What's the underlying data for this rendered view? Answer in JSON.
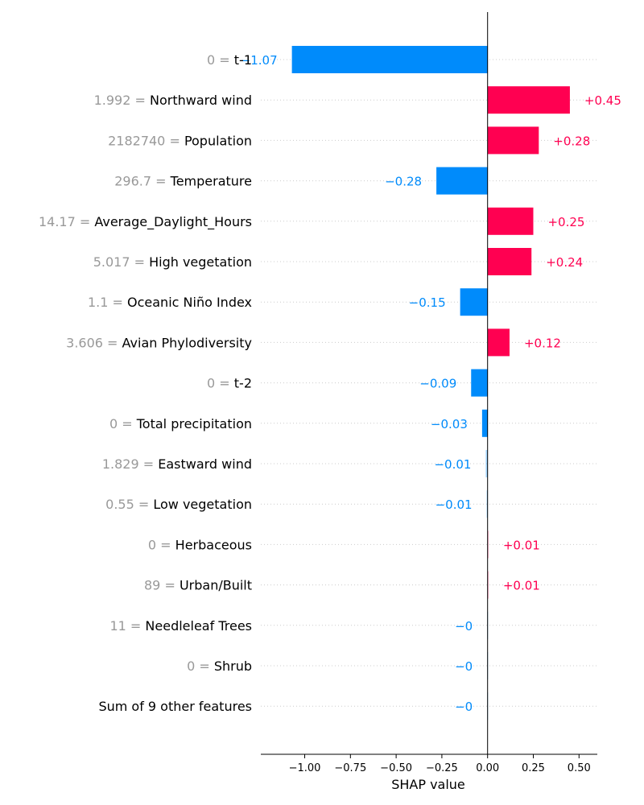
{
  "chart_data": {
    "type": "bar",
    "orientation": "horizontal",
    "xlabel": "SHAP value",
    "xlim": [
      -1.24,
      0.6
    ],
    "xticks": [
      -1.0,
      -0.75,
      -0.5,
      -0.25,
      0.0,
      0.25,
      0.5
    ],
    "xtick_labels": [
      "−1.00",
      "−0.75",
      "−0.50",
      "−0.25",
      "0.00",
      "0.25",
      "0.50"
    ],
    "grid": "dotted horizontal",
    "colors": {
      "positive": "#ff0051",
      "negative": "#008bfb"
    },
    "features": [
      {
        "value": "0",
        "name": "t-1",
        "shap": -1.07,
        "label": "−1.07"
      },
      {
        "value": "1.992",
        "name": "Northward wind",
        "shap": 0.45,
        "label": "+0.45"
      },
      {
        "value": "2182740",
        "name": "Population",
        "shap": 0.28,
        "label": "+0.28"
      },
      {
        "value": "296.7",
        "name": "Temperature",
        "shap": -0.28,
        "label": "−0.28"
      },
      {
        "value": "14.17",
        "name": "Average_Daylight_Hours",
        "shap": 0.25,
        "label": "+0.25"
      },
      {
        "value": "5.017",
        "name": "High vegetation",
        "shap": 0.24,
        "label": "+0.24"
      },
      {
        "value": "1.1",
        "name": "Oceanic Niño Index",
        "shap": -0.15,
        "label": "−0.15"
      },
      {
        "value": "3.606",
        "name": "Avian Phylodiversity",
        "shap": 0.12,
        "label": "+0.12"
      },
      {
        "value": "0",
        "name": "t-2",
        "shap": -0.09,
        "label": "−0.09"
      },
      {
        "value": "0",
        "name": "Total precipitation",
        "shap": -0.03,
        "label": "−0.03"
      },
      {
        "value": "1.829",
        "name": "Eastward wind",
        "shap": -0.01,
        "label": "−0.01"
      },
      {
        "value": "0.55",
        "name": "Low vegetation",
        "shap": -0.005,
        "label": "−0.01"
      },
      {
        "value": "0",
        "name": "Herbaceous",
        "shap": 0.005,
        "label": "+0.01"
      },
      {
        "value": "89",
        "name": "Urban/Built",
        "shap": 0.005,
        "label": "+0.01"
      },
      {
        "value": "11",
        "name": "Needleleaf Trees",
        "shap": -0.002,
        "label": "−0"
      },
      {
        "value": "0",
        "name": "Shrub",
        "shap": -0.002,
        "label": "−0"
      },
      {
        "value": "",
        "name": "Sum of 9 other features",
        "shap": -0.002,
        "label": "−0"
      }
    ]
  }
}
